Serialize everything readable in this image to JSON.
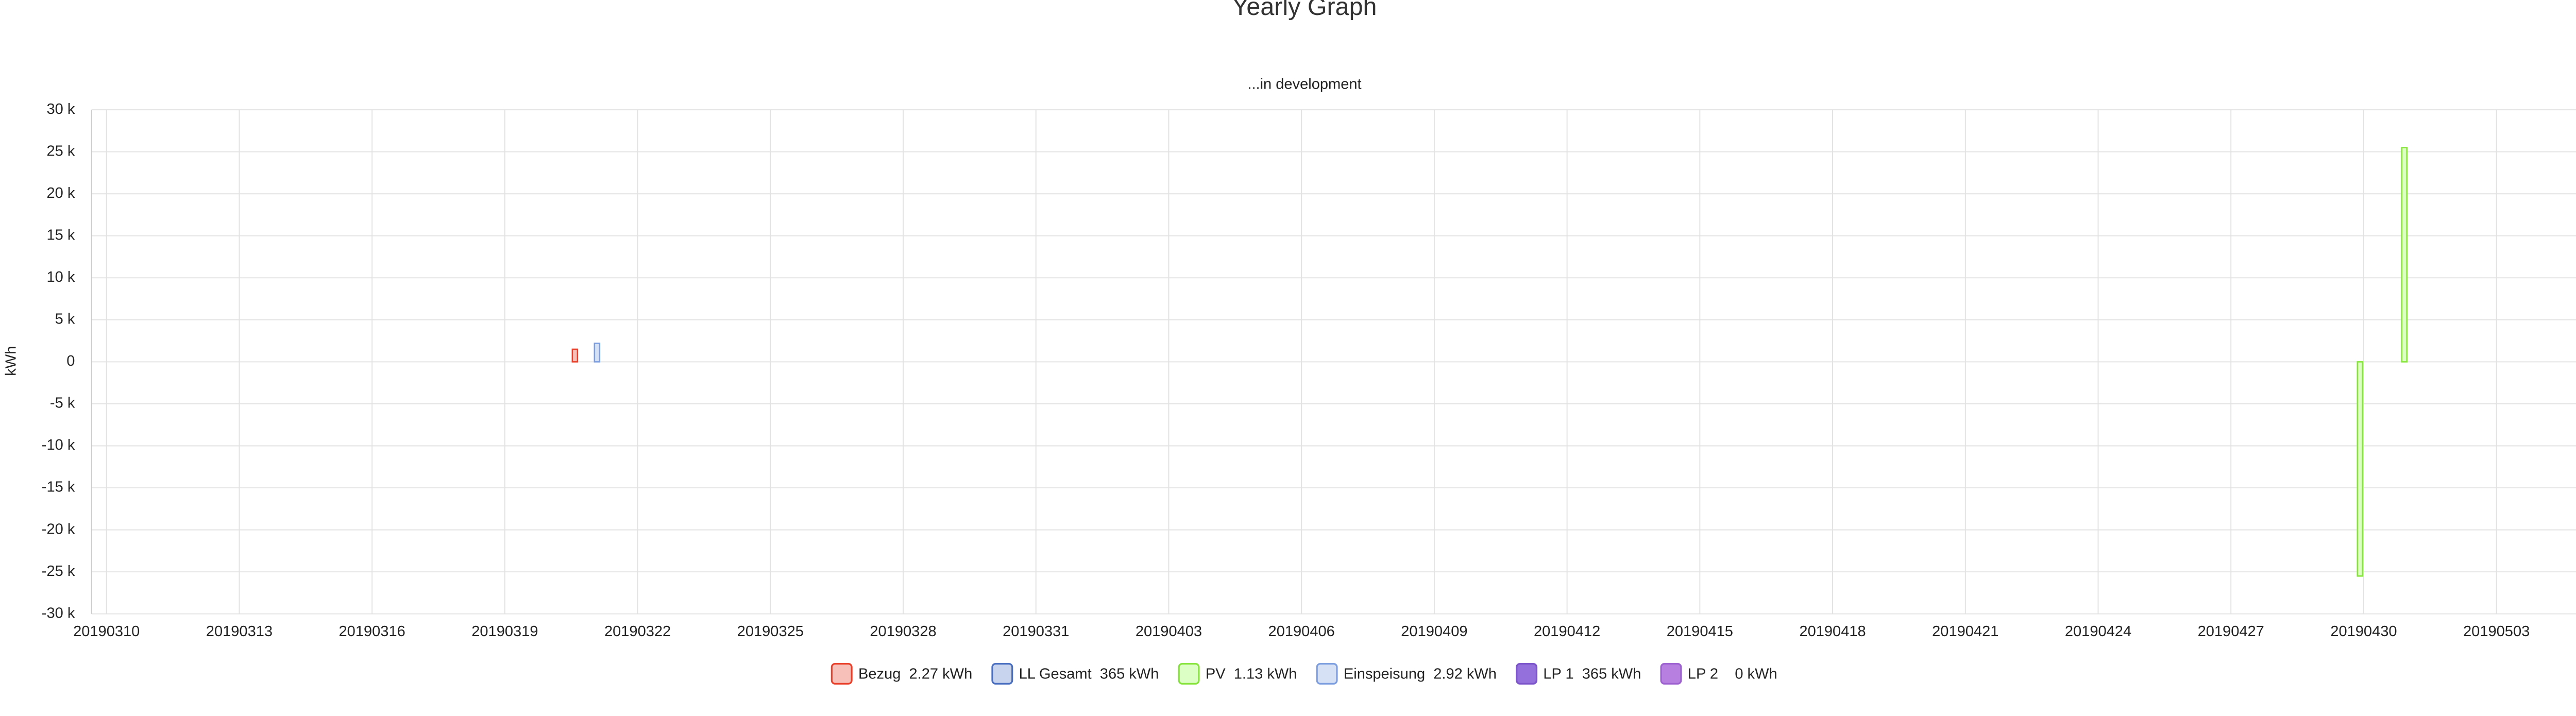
{
  "chart_data": {
    "type": "bar",
    "title": "Yearly Graph",
    "subtitle": "...in development",
    "y_label": "kWh",
    "categories": [
      "20190310",
      null,
      null,
      "20190313",
      null,
      null,
      "20190316",
      null,
      null,
      "20190319",
      null,
      null,
      "20190322",
      null,
      null,
      "20190325",
      null,
      null,
      "20190328",
      null,
      null,
      "20190331",
      null,
      null,
      "20190403",
      null,
      null,
      "20190406",
      null,
      null,
      "20190409",
      null,
      null,
      "20190412",
      null,
      null,
      "20190415",
      null,
      null,
      "20190418",
      null,
      null,
      "20190421",
      null,
      null,
      "20190424",
      null,
      null,
      "20190427",
      null,
      null,
      "20190430",
      null,
      null,
      "20190503",
      null,
      null,
      null
    ],
    "series": [
      {
        "name": "Bezug  2.27 kWh",
        "color": "#f7c1b9",
        "border": "#e8402a",
        "values": [
          0,
          0,
          0,
          0,
          0,
          0,
          0,
          0,
          0,
          0,
          0,
          1500,
          0,
          0,
          0,
          0,
          0,
          0,
          0,
          0,
          0,
          0,
          0,
          0,
          0,
          0,
          0,
          0,
          0,
          0,
          0,
          0,
          0,
          0,
          0,
          0,
          0,
          0,
          0,
          0,
          0,
          0,
          0,
          0,
          0,
          0,
          0,
          0,
          0,
          0,
          0,
          0,
          0,
          0,
          0,
          0,
          0,
          0
        ]
      },
      {
        "name": "LL Gesamt  365 kWh",
        "color": "#c8d4ee",
        "border": "#4a6fc0",
        "values": [
          0,
          0,
          0,
          0,
          0,
          0,
          0,
          0,
          0,
          0,
          0,
          0,
          0,
          0,
          0,
          0,
          0,
          0,
          0,
          0,
          0,
          0,
          0,
          0,
          0,
          0,
          0,
          0,
          0,
          0,
          0,
          0,
          0,
          0,
          0,
          0,
          0,
          0,
          0,
          0,
          0,
          0,
          0,
          0,
          0,
          0,
          0,
          0,
          0,
          0,
          0,
          0,
          0,
          0,
          0,
          0,
          0,
          0
        ]
      },
      {
        "name": "PV  1.13 kWh",
        "color": "#dcffc6",
        "border": "#86e43c",
        "values": [
          0,
          0,
          0,
          0,
          0,
          0,
          0,
          0,
          0,
          0,
          0,
          0,
          0,
          0,
          0,
          0,
          0,
          0,
          0,
          0,
          0,
          0,
          0,
          0,
          0,
          0,
          0,
          0,
          0,
          0,
          0,
          0,
          0,
          0,
          0,
          0,
          0,
          0,
          0,
          0,
          0,
          0,
          0,
          0,
          0,
          0,
          0,
          0,
          0,
          0,
          0,
          -25500,
          25500,
          0,
          0,
          0,
          0,
          0
        ]
      },
      {
        "name": "Einspeisung  2.92 kWh",
        "color": "#d6e1f6",
        "border": "#7d9fe0",
        "values": [
          0,
          0,
          0,
          0,
          0,
          0,
          0,
          0,
          0,
          0,
          0,
          2200,
          0,
          0,
          0,
          0,
          0,
          0,
          0,
          0,
          0,
          0,
          0,
          0,
          0,
          0,
          0,
          0,
          0,
          0,
          0,
          0,
          0,
          0,
          0,
          0,
          0,
          0,
          0,
          0,
          0,
          0,
          0,
          0,
          0,
          0,
          0,
          0,
          0,
          0,
          0,
          0,
          0,
          0,
          0,
          0,
          0,
          0
        ]
      },
      {
        "name": "LP 1  365 kWh",
        "color": "#9370db",
        "border": "#7b55c9",
        "values": [
          0,
          0,
          0,
          0,
          0,
          0,
          0,
          0,
          0,
          0,
          0,
          0,
          0,
          0,
          0,
          0,
          0,
          0,
          0,
          0,
          0,
          0,
          0,
          0,
          0,
          0,
          0,
          0,
          0,
          0,
          0,
          0,
          0,
          0,
          0,
          0,
          0,
          0,
          0,
          0,
          0,
          0,
          0,
          0,
          0,
          0,
          0,
          0,
          0,
          0,
          0,
          0,
          0,
          0,
          0,
          0,
          0,
          0
        ]
      },
      {
        "name": "LP 2    0 kWh",
        "color": "#b67fe0",
        "border": "#9d62cf",
        "values": [
          0,
          0,
          0,
          0,
          0,
          0,
          0,
          0,
          0,
          0,
          0,
          0,
          0,
          0,
          0,
          0,
          0,
          0,
          0,
          0,
          0,
          0,
          0,
          0,
          0,
          0,
          0,
          0,
          0,
          0,
          0,
          0,
          0,
          0,
          0,
          0,
          0,
          0,
          0,
          0,
          0,
          0,
          0,
          0,
          0,
          0,
          0,
          0,
          0,
          0,
          0,
          0,
          0,
          0,
          0,
          0,
          0,
          0
        ]
      }
    ],
    "ylim": [
      -30000,
      30000
    ],
    "yticks": [
      {
        "value": -30000,
        "label": "-30 k"
      },
      {
        "value": -25000,
        "label": "-25 k"
      },
      {
        "value": -20000,
        "label": "-20 k"
      },
      {
        "value": -15000,
        "label": "-15 k"
      },
      {
        "value": -10000,
        "label": "-10 k"
      },
      {
        "value": -5000,
        "label": "-5 k"
      },
      0,
      {
        "value": 5000,
        "label": "5 k"
      },
      {
        "value": 10000,
        "label": "10 k"
      },
      {
        "value": 15000,
        "label": "15 k"
      },
      {
        "value": 20000,
        "label": "20 k"
      },
      {
        "value": 25000,
        "label": "25 k"
      },
      {
        "value": 30000,
        "label": "30 k"
      }
    ],
    "grid": true
  }
}
